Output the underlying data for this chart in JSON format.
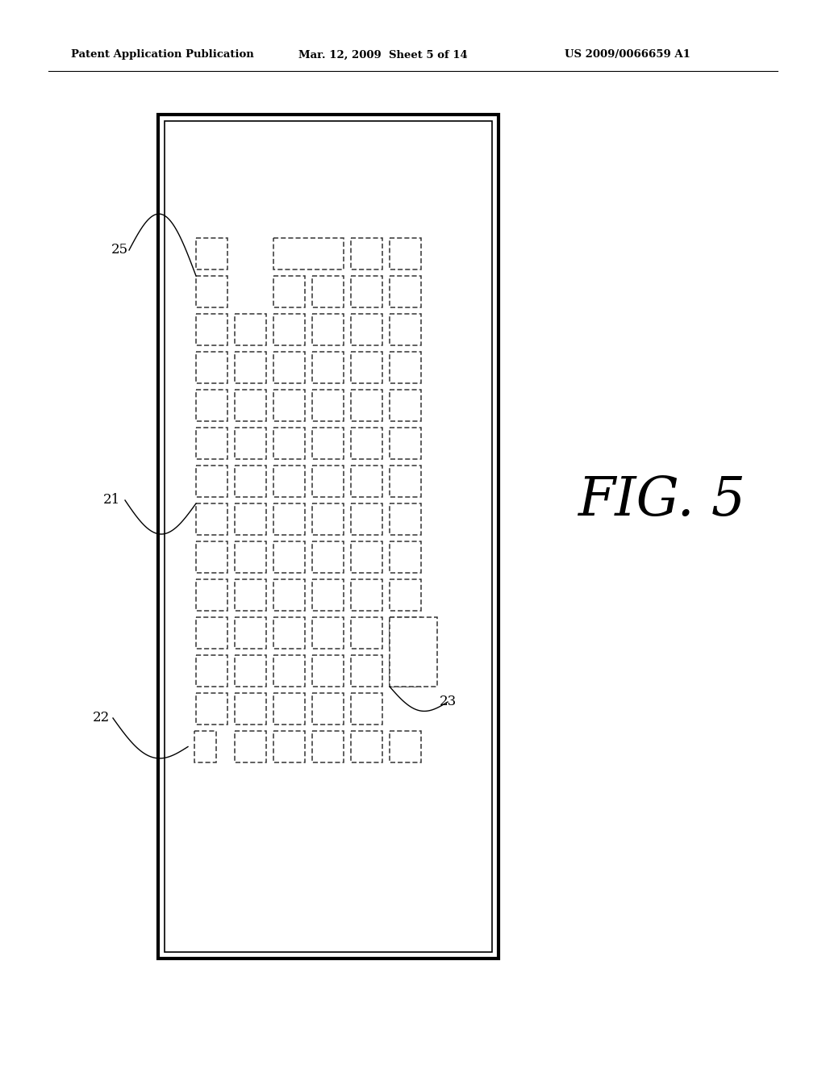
{
  "header_left": "Patent Application Publication",
  "header_mid": "Mar. 12, 2009  Sheet 5 of 14",
  "header_right": "US 2009/0066659 A1",
  "fig_label": "FIG. 5",
  "bg_color": "#ffffff",
  "line_color": "#000000",
  "dash_color": "#333333"
}
